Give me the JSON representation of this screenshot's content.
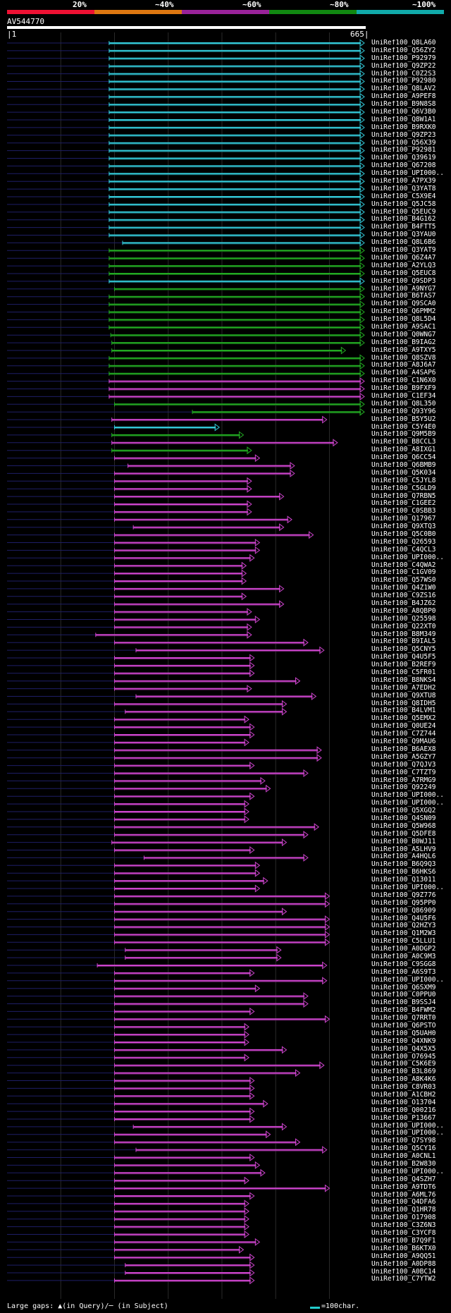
{
  "legend": [
    {
      "label": "20%",
      "color": "#ee1133"
    },
    {
      "label": "~40%",
      "color": "#dd7711"
    },
    {
      "label": "~60%",
      "color": "#992299"
    },
    {
      "label": "~80%",
      "color": "#118811"
    },
    {
      "label": "~100%",
      "color": "#11aaaa"
    }
  ],
  "query": {
    "name": "AV544770",
    "start": "1",
    "end": "665",
    "length": 665
  },
  "hits": [
    {
      "label": "UniRef100_Q8LA60",
      "start": 190,
      "end": 665,
      "color": "cyan"
    },
    {
      "label": "UniRef100_Q56ZY2",
      "start": 190,
      "end": 665,
      "color": "cyan"
    },
    {
      "label": "UniRef100_P92979",
      "start": 190,
      "end": 665,
      "color": "cyan"
    },
    {
      "label": "UniRef100_Q9ZP22",
      "start": 190,
      "end": 665,
      "color": "cyan"
    },
    {
      "label": "UniRef100_C0Z2S3",
      "start": 190,
      "end": 665,
      "color": "cyan"
    },
    {
      "label": "UniRef100_P92980",
      "start": 190,
      "end": 665,
      "color": "cyan"
    },
    {
      "label": "UniRef100_Q8LAV2",
      "start": 190,
      "end": 665,
      "color": "cyan"
    },
    {
      "label": "UniRef100_A9PEF8",
      "start": 190,
      "end": 665,
      "color": "cyan"
    },
    {
      "label": "UniRef100_B9N8S8",
      "start": 190,
      "end": 665,
      "color": "cyan"
    },
    {
      "label": "UniRef100_Q6V3B0",
      "start": 190,
      "end": 665,
      "color": "cyan"
    },
    {
      "label": "UniRef100_Q8W1A1",
      "start": 190,
      "end": 665,
      "color": "cyan"
    },
    {
      "label": "UniRef100_B9RXK0",
      "start": 190,
      "end": 665,
      "color": "cyan"
    },
    {
      "label": "UniRef100_Q9ZP23",
      "start": 190,
      "end": 665,
      "color": "cyan"
    },
    {
      "label": "UniRef100_Q56X39",
      "start": 190,
      "end": 665,
      "color": "cyan"
    },
    {
      "label": "UniRef100_P92981",
      "start": 190,
      "end": 665,
      "color": "cyan"
    },
    {
      "label": "UniRef100_Q39619",
      "start": 190,
      "end": 665,
      "color": "cyan"
    },
    {
      "label": "UniRef100_Q67208",
      "start": 190,
      "end": 665,
      "color": "cyan"
    },
    {
      "label": "UniRef100_UPI000..",
      "start": 190,
      "end": 665,
      "color": "cyan"
    },
    {
      "label": "UniRef100_A7PX39",
      "start": 190,
      "end": 665,
      "color": "cyan"
    },
    {
      "label": "UniRef100_Q3YAT8",
      "start": 190,
      "end": 665,
      "color": "cyan"
    },
    {
      "label": "UniRef100_C5X9E4",
      "start": 190,
      "end": 665,
      "color": "cyan"
    },
    {
      "label": "UniRef100_Q5JC58",
      "start": 190,
      "end": 665,
      "color": "cyan"
    },
    {
      "label": "UniRef100_Q5EUC9",
      "start": 190,
      "end": 665,
      "color": "cyan"
    },
    {
      "label": "UniRef100_B4G162",
      "start": 190,
      "end": 665,
      "color": "cyan"
    },
    {
      "label": "UniRef100_B4FTT5",
      "start": 190,
      "end": 665,
      "color": "cyan"
    },
    {
      "label": "UniRef100_Q3YAU0",
      "start": 190,
      "end": 665,
      "color": "cyan"
    },
    {
      "label": "UniRef100_Q8L6B6",
      "start": 215,
      "end": 665,
      "color": "cyan"
    },
    {
      "label": "UniRef100_Q3YAT9",
      "start": 190,
      "end": 665,
      "color": "green"
    },
    {
      "label": "UniRef100_Q6Z4A7",
      "start": 190,
      "end": 665,
      "color": "green"
    },
    {
      "label": "UniRef100_A2YLQ3",
      "start": 190,
      "end": 665,
      "color": "green"
    },
    {
      "label": "UniRef100_Q5EUC8",
      "start": 190,
      "end": 665,
      "color": "green"
    },
    {
      "label": "UniRef100_Q9SDP3",
      "start": 190,
      "end": 665,
      "color": "cyan"
    },
    {
      "label": "UniRef100_A9NYG7",
      "start": 200,
      "end": 665,
      "color": "green"
    },
    {
      "label": "UniRef100_B6TAS7",
      "start": 190,
      "end": 665,
      "color": "green"
    },
    {
      "label": "UniRef100_Q9SCA0",
      "start": 190,
      "end": 665,
      "color": "green"
    },
    {
      "label": "UniRef100_Q6PMM2",
      "start": 190,
      "end": 665,
      "color": "green"
    },
    {
      "label": "UniRef100_Q8L5D4",
      "start": 190,
      "end": 665,
      "color": "green"
    },
    {
      "label": "UniRef100_A9SAC1",
      "start": 190,
      "end": 665,
      "color": "green"
    },
    {
      "label": "UniRef100_Q0WNG7",
      "start": 193,
      "end": 665,
      "color": "green"
    },
    {
      "label": "UniRef100_B9IAG2",
      "start": 195,
      "end": 665,
      "color": "green"
    },
    {
      "label": "UniRef100_A9TXY5",
      "start": 195,
      "end": 630,
      "color": "green"
    },
    {
      "label": "UniRef100_Q8SZV8",
      "start": 190,
      "end": 665,
      "color": "green"
    },
    {
      "label": "UniRef100_A8J6A7",
      "start": 190,
      "end": 665,
      "color": "green"
    },
    {
      "label": "UniRef100_A4SAP6",
      "start": 190,
      "end": 665,
      "color": "green"
    },
    {
      "label": "UniRef100_C1N6X0",
      "start": 190,
      "end": 665,
      "color": "purple"
    },
    {
      "label": "UniRef100_B9FXF9",
      "start": 190,
      "end": 665,
      "color": "purple"
    },
    {
      "label": "UniRef100_C1EF34",
      "start": 190,
      "end": 665,
      "color": "purple"
    },
    {
      "label": "UniRef100_Q8L350",
      "start": 200,
      "end": 665,
      "color": "green"
    },
    {
      "label": "UniRef100_Q93Y96",
      "start": 345,
      "end": 665,
      "color": "green"
    },
    {
      "label": "UniRef100_B5Y5U2",
      "start": 195,
      "end": 595,
      "color": "purple"
    },
    {
      "label": "UniRef100_C5Y4E0",
      "start": 200,
      "end": 395,
      "color": "cyan"
    },
    {
      "label": "UniRef100_Q9M5B9",
      "start": 195,
      "end": 440,
      "color": "green"
    },
    {
      "label": "UniRef100_B8CCL3",
      "start": 195,
      "end": 615,
      "color": "purple"
    },
    {
      "label": "UniRef100_A8IXG1",
      "start": 195,
      "end": 455,
      "color": "green"
    },
    {
      "label": "UniRef100_Q6CC54",
      "start": 200,
      "end": 470,
      "color": "purple"
    },
    {
      "label": "UniRef100_Q6BMB9",
      "start": 225,
      "end": 535,
      "color": "purple"
    },
    {
      "label": "UniRef100_Q5K034",
      "start": 200,
      "end": 535,
      "color": "purple"
    },
    {
      "label": "UniRef100_C5JYL8",
      "start": 200,
      "end": 455,
      "color": "purple"
    },
    {
      "label": "UniRef100_C5GLD9",
      "start": 200,
      "end": 455,
      "color": "purple"
    },
    {
      "label": "UniRef100_Q7RBN5",
      "start": 200,
      "end": 515,
      "color": "purple"
    },
    {
      "label": "UniRef100_C1GEE2",
      "start": 200,
      "end": 455,
      "color": "purple"
    },
    {
      "label": "UniRef100_C0SBB3",
      "start": 200,
      "end": 455,
      "color": "purple"
    },
    {
      "label": "UniRef100_Q17967",
      "start": 200,
      "end": 530,
      "color": "purple"
    },
    {
      "label": "UniRef100_Q9XTQ3",
      "start": 235,
      "end": 515,
      "color": "purple"
    },
    {
      "label": "UniRef100_Q5C0B0",
      "start": 200,
      "end": 570,
      "color": "purple"
    },
    {
      "label": "UniRef100_Q26593",
      "start": 200,
      "end": 470,
      "color": "purple"
    },
    {
      "label": "UniRef100_C4QCL3",
      "start": 200,
      "end": 470,
      "color": "purple"
    },
    {
      "label": "UniRef100_UPI000..",
      "start": 200,
      "end": 460,
      "color": "purple"
    },
    {
      "label": "UniRef100_C4QWA2",
      "start": 200,
      "end": 445,
      "color": "purple"
    },
    {
      "label": "UniRef100_C1GV09",
      "start": 200,
      "end": 445,
      "color": "purple"
    },
    {
      "label": "UniRef100_Q57WS0",
      "start": 200,
      "end": 445,
      "color": "purple"
    },
    {
      "label": "UniRef100_Q4Z1W0",
      "start": 200,
      "end": 515,
      "color": "purple"
    },
    {
      "label": "UniRef100_C9ZS16",
      "start": 200,
      "end": 445,
      "color": "purple"
    },
    {
      "label": "UniRef100_B4JZ62",
      "start": 200,
      "end": 515,
      "color": "purple"
    },
    {
      "label": "UniRef100_A8QBP0",
      "start": 200,
      "end": 455,
      "color": "purple"
    },
    {
      "label": "UniRef100_Q25598",
      "start": 200,
      "end": 470,
      "color": "purple"
    },
    {
      "label": "UniRef100_Q22XT0",
      "start": 200,
      "end": 455,
      "color": "purple"
    },
    {
      "label": "UniRef100_B8M349",
      "start": 165,
      "end": 455,
      "color": "purple"
    },
    {
      "label": "UniRef100_B9IAL5",
      "start": 200,
      "end": 560,
      "color": "purple"
    },
    {
      "label": "UniRef100_Q5CNY5",
      "start": 240,
      "end": 590,
      "color": "purple"
    },
    {
      "label": "UniRef100_Q4U5F5",
      "start": 200,
      "end": 460,
      "color": "purple"
    },
    {
      "label": "UniRef100_B2REF9",
      "start": 200,
      "end": 460,
      "color": "purple"
    },
    {
      "label": "UniRef100_C5FR01",
      "start": 200,
      "end": 460,
      "color": "purple"
    },
    {
      "label": "UniRef100_B8NKS4",
      "start": 200,
      "end": 545,
      "color": "purple"
    },
    {
      "label": "UniRef100_A7EDH2",
      "start": 200,
      "end": 455,
      "color": "purple"
    },
    {
      "label": "UniRef100_Q9XTU8",
      "start": 240,
      "end": 575,
      "color": "purple"
    },
    {
      "label": "UniRef100_Q8IDH5",
      "start": 200,
      "end": 520,
      "color": "purple"
    },
    {
      "label": "UniRef100_B4LVM1",
      "start": 220,
      "end": 520,
      "color": "purple"
    },
    {
      "label": "UniRef100_Q5EMX2",
      "start": 200,
      "end": 450,
      "color": "purple"
    },
    {
      "label": "UniRef100_Q0UE24",
      "start": 200,
      "end": 460,
      "color": "purple"
    },
    {
      "label": "UniRef100_C7Z744",
      "start": 200,
      "end": 460,
      "color": "purple"
    },
    {
      "label": "UniRef100_Q9MAU6",
      "start": 200,
      "end": 450,
      "color": "purple"
    },
    {
      "label": "UniRef100_B6AEX8",
      "start": 200,
      "end": 585,
      "color": "purple"
    },
    {
      "label": "UniRef100_A5GZY7",
      "start": 200,
      "end": 585,
      "color": "purple"
    },
    {
      "label": "UniRef100_Q7QJV3",
      "start": 200,
      "end": 460,
      "color": "purple"
    },
    {
      "label": "UniRef100_C7TZT9",
      "start": 200,
      "end": 560,
      "color": "purple"
    },
    {
      "label": "UniRef100_A7RMG9",
      "start": 200,
      "end": 480,
      "color": "purple"
    },
    {
      "label": "UniRef100_Q92249",
      "start": 200,
      "end": 490,
      "color": "purple"
    },
    {
      "label": "UniRef100_UPI000..",
      "start": 200,
      "end": 460,
      "color": "purple"
    },
    {
      "label": "UniRef100_UPI000..",
      "start": 200,
      "end": 450,
      "color": "purple"
    },
    {
      "label": "UniRef100_Q5XGQ2",
      "start": 200,
      "end": 450,
      "color": "purple"
    },
    {
      "label": "UniRef100_Q4SN09",
      "start": 200,
      "end": 450,
      "color": "purple"
    },
    {
      "label": "UniRef100_Q5W968",
      "start": 200,
      "end": 580,
      "color": "purple"
    },
    {
      "label": "UniRef100_Q5DFE8",
      "start": 200,
      "end": 560,
      "color": "purple"
    },
    {
      "label": "UniRef100_B0WJ11",
      "start": 195,
      "end": 520,
      "color": "purple"
    },
    {
      "label": "UniRef100_A5LHV9",
      "start": 200,
      "end": 460,
      "color": "purple"
    },
    {
      "label": "UniRef100_A4HQL6",
      "start": 255,
      "end": 560,
      "color": "purple"
    },
    {
      "label": "UniRef100_B6Q9Q3",
      "start": 200,
      "end": 470,
      "color": "purple"
    },
    {
      "label": "UniRef100_B6HKS6",
      "start": 200,
      "end": 470,
      "color": "purple"
    },
    {
      "label": "UniRef100_Q13011",
      "start": 200,
      "end": 485,
      "color": "purple"
    },
    {
      "label": "UniRef100_UPI000..",
      "start": 200,
      "end": 470,
      "color": "purple"
    },
    {
      "label": "UniRef100_Q9Z776",
      "start": 200,
      "end": 600,
      "color": "purple"
    },
    {
      "label": "UniRef100_Q95PP0",
      "start": 200,
      "end": 600,
      "color": "purple"
    },
    {
      "label": "UniRef100_Q86909",
      "start": 200,
      "end": 520,
      "color": "purple"
    },
    {
      "label": "UniRef100_Q4U5F6",
      "start": 200,
      "end": 600,
      "color": "purple"
    },
    {
      "label": "UniRef100_Q2HZY3",
      "start": 200,
      "end": 600,
      "color": "purple"
    },
    {
      "label": "UniRef100_Q1M2W3",
      "start": 200,
      "end": 600,
      "color": "purple"
    },
    {
      "label": "UniRef100_C5LLU1",
      "start": 200,
      "end": 600,
      "color": "purple"
    },
    {
      "label": "UniRef100_A0DGP2",
      "start": 220,
      "end": 510,
      "color": "purple"
    },
    {
      "label": "UniRef100_A0C9M3",
      "start": 220,
      "end": 510,
      "color": "purple"
    },
    {
      "label": "UniRef100_C9SGG8",
      "start": 168,
      "end": 595,
      "color": "purple"
    },
    {
      "label": "UniRef100_A6S9T3",
      "start": 200,
      "end": 460,
      "color": "purple"
    },
    {
      "label": "UniRef100_UPI000..",
      "start": 200,
      "end": 595,
      "color": "purple"
    },
    {
      "label": "UniRef100_Q6SXM9",
      "start": 200,
      "end": 470,
      "color": "purple"
    },
    {
      "label": "UniRef100_C0PPU0",
      "start": 200,
      "end": 560,
      "color": "purple"
    },
    {
      "label": "UniRef100_B9SSJ4",
      "start": 200,
      "end": 560,
      "color": "purple"
    },
    {
      "label": "UniRef100_B4FWM2",
      "start": 200,
      "end": 460,
      "color": "purple"
    },
    {
      "label": "UniRef100_Q7RRT0",
      "start": 200,
      "end": 600,
      "color": "purple"
    },
    {
      "label": "UniRef100_Q6PSTO",
      "start": 200,
      "end": 450,
      "color": "purple"
    },
    {
      "label": "UniRef100_Q5UAH0",
      "start": 200,
      "end": 450,
      "color": "purple"
    },
    {
      "label": "UniRef100_Q4XNK9",
      "start": 200,
      "end": 450,
      "color": "purple"
    },
    {
      "label": "UniRef100_Q4X5X5",
      "start": 200,
      "end": 520,
      "color": "purple"
    },
    {
      "label": "UniRef100_O76945",
      "start": 200,
      "end": 450,
      "color": "purple"
    },
    {
      "label": "UniRef100_C5K6E9",
      "start": 200,
      "end": 590,
      "color": "purple"
    },
    {
      "label": "UniRef100_B3L869",
      "start": 200,
      "end": 545,
      "color": "purple"
    },
    {
      "label": "UniRef100_A8K4K6",
      "start": 200,
      "end": 460,
      "color": "purple"
    },
    {
      "label": "UniRef100_C8VR03",
      "start": 200,
      "end": 460,
      "color": "purple"
    },
    {
      "label": "UniRef100_A1CBH2",
      "start": 200,
      "end": 460,
      "color": "purple"
    },
    {
      "label": "UniRef100_O13704",
      "start": 200,
      "end": 485,
      "color": "purple"
    },
    {
      "label": "UniRef100_Q00216",
      "start": 200,
      "end": 460,
      "color": "purple"
    },
    {
      "label": "UniRef100_P13667",
      "start": 200,
      "end": 460,
      "color": "purple"
    },
    {
      "label": "UniRef100_UPI000..",
      "start": 235,
      "end": 520,
      "color": "purple"
    },
    {
      "label": "UniRef100_UPI000..",
      "start": 200,
      "end": 490,
      "color": "purple"
    },
    {
      "label": "UniRef100_Q7SY98",
      "start": 200,
      "end": 545,
      "color": "purple"
    },
    {
      "label": "UniRef100_Q5CY16",
      "start": 240,
      "end": 595,
      "color": "purple"
    },
    {
      "label": "UniRef100_A0CNL1",
      "start": 200,
      "end": 460,
      "color": "purple"
    },
    {
      "label": "UniRef100_B2W830",
      "start": 200,
      "end": 470,
      "color": "purple"
    },
    {
      "label": "UniRef100_UPI000..",
      "start": 200,
      "end": 480,
      "color": "purple"
    },
    {
      "label": "UniRef100_Q4SZH7",
      "start": 200,
      "end": 450,
      "color": "purple"
    },
    {
      "label": "UniRef100_A9TDT6",
      "start": 200,
      "end": 600,
      "color": "purple"
    },
    {
      "label": "UniRef100_A6ML76",
      "start": 200,
      "end": 460,
      "color": "purple"
    },
    {
      "label": "UniRef100_Q4DFA6",
      "start": 200,
      "end": 450,
      "color": "purple"
    },
    {
      "label": "UniRef100_Q1HR78",
      "start": 200,
      "end": 450,
      "color": "purple"
    },
    {
      "label": "UniRef100_O17908",
      "start": 200,
      "end": 450,
      "color": "purple"
    },
    {
      "label": "UniRef100_C3Z6N3",
      "start": 200,
      "end": 450,
      "color": "purple"
    },
    {
      "label": "UniRef100_C3YCF8",
      "start": 200,
      "end": 450,
      "color": "purple"
    },
    {
      "label": "UniRef100_B7Q9F1",
      "start": 200,
      "end": 470,
      "color": "purple"
    },
    {
      "label": "UniRef100_B6KTX0",
      "start": 200,
      "end": 440,
      "color": "purple"
    },
    {
      "label": "UniRef100_A9QQ51",
      "start": 200,
      "end": 460,
      "color": "purple"
    },
    {
      "label": "UniRef100_A0DP88",
      "start": 220,
      "end": 460,
      "color": "purple"
    },
    {
      "label": "UniRef100_A0BC14",
      "start": 220,
      "end": 460,
      "color": "purple"
    },
    {
      "label": "UniRef100_C7YTW2",
      "start": 200,
      "end": 460,
      "color": "purple"
    }
  ],
  "footer": {
    "gaps_text": "Large gaps: ▲(in Query)/─ (in Subject)",
    "scale_text": "=100char."
  }
}
